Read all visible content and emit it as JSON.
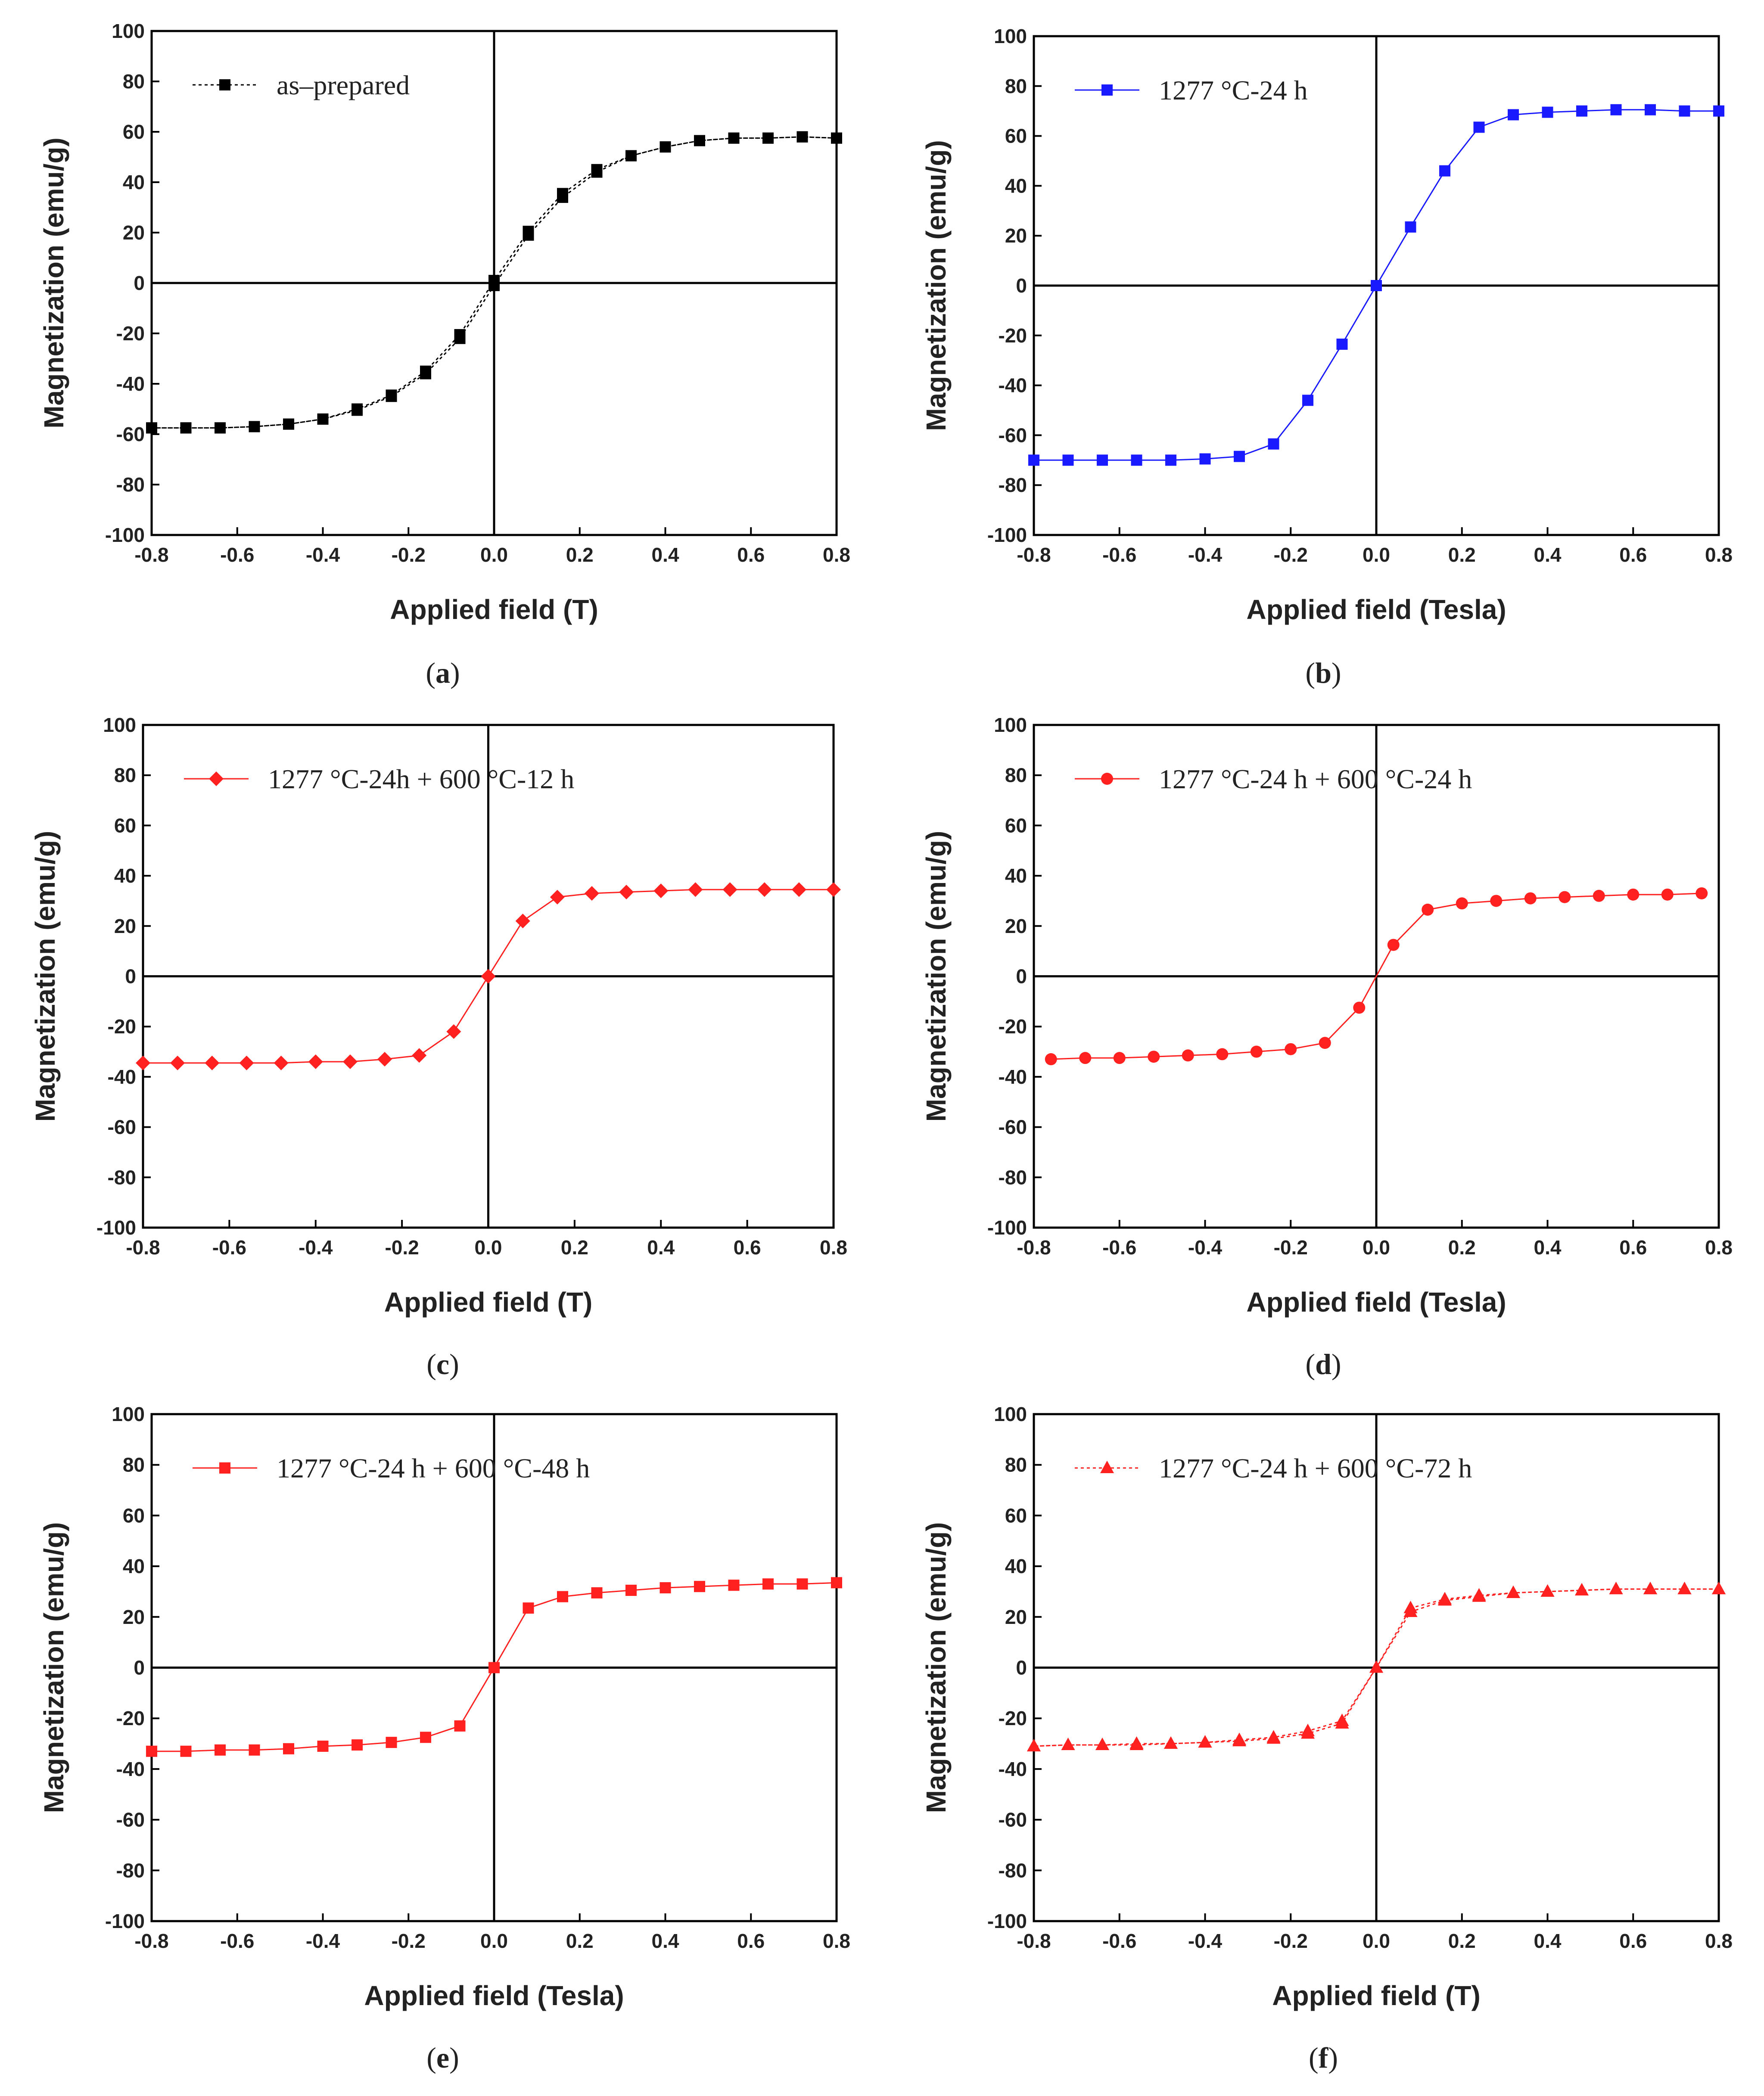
{
  "chart_data": [
    {
      "type": "scatter",
      "panel": "(a)",
      "caption_letter": "a",
      "legend": "as–prepared",
      "xlabel": "Applied field (T)",
      "ylabel": "Magnetization (emu/g)",
      "xlim": [
        -0.8,
        0.8
      ],
      "ylim": [
        -100,
        100
      ],
      "xticks": [
        -0.8,
        -0.6,
        -0.4,
        -0.2,
        0.0,
        0.2,
        0.4,
        0.6,
        0.8
      ],
      "xtick_labels": [
        "-0.8",
        "-0.6",
        "-0.4",
        "-0.2",
        "0.0",
        "0.2",
        "0.4",
        "0.6",
        "0.8"
      ],
      "yticks": [
        -100,
        -80,
        -60,
        -40,
        -20,
        0,
        20,
        40,
        60,
        80,
        100
      ],
      "ytick_labels": [
        "-100",
        "-80",
        "-60",
        "-40",
        "-20",
        "0",
        "20",
        "40",
        "60",
        "80",
        "100"
      ],
      "color": "#000000",
      "marker": "square",
      "line_style": "dotted",
      "x": [
        -0.8,
        -0.72,
        -0.64,
        -0.56,
        -0.48,
        -0.4,
        -0.32,
        -0.24,
        -0.16,
        -0.08,
        0.0,
        0.08,
        0.16,
        0.24,
        0.32,
        0.4,
        0.48,
        0.56,
        0.64,
        0.72,
        0.8
      ],
      "y": [
        -57.5,
        -57.5,
        -57.5,
        -57,
        -56,
        -54,
        -50,
        -44.5,
        -35,
        -20.5,
        1,
        20.5,
        35.5,
        45,
        50.5,
        54,
        56.5,
        57.5,
        57.5,
        58,
        57.5
      ],
      "x_return": [
        0.8,
        0.72,
        0.64,
        0.56,
        0.48,
        0.4,
        0.32,
        0.24,
        0.16,
        0.08,
        0.0,
        -0.08,
        -0.16,
        -0.24,
        -0.32,
        -0.4,
        -0.48,
        -0.56,
        -0.64,
        -0.72,
        -0.8
      ],
      "y_return": [
        57.5,
        58,
        57.5,
        57.5,
        56.5,
        54,
        50.5,
        44,
        34,
        19,
        -1,
        -22,
        -36,
        -45,
        -50.5,
        -54,
        -56,
        -57,
        -57.5,
        -57.5,
        -57.5
      ]
    },
    {
      "type": "scatter",
      "panel": "(b)",
      "caption_letter": "b",
      "legend": "1277 °C-24 h",
      "xlabel": "Applied field (Tesla)",
      "ylabel": "Magnetization (emu/g)",
      "xlim": [
        -0.8,
        0.8
      ],
      "ylim": [
        -100,
        100
      ],
      "xticks": [
        -0.8,
        -0.6,
        -0.4,
        -0.2,
        0.0,
        0.2,
        0.4,
        0.6,
        0.8
      ],
      "xtick_labels": [
        "-0.8",
        "-0.6",
        "-0.4",
        "-0.2",
        "0.0",
        "0.2",
        "0.4",
        "0.6",
        "0.8"
      ],
      "yticks": [
        -100,
        -80,
        -60,
        -40,
        -20,
        0,
        20,
        40,
        60,
        80,
        100
      ],
      "ytick_labels": [
        "-100",
        "-80",
        "-60",
        "-40",
        "-20",
        "0",
        "20",
        "40",
        "60",
        "80",
        "100"
      ],
      "color": "#1a1aff",
      "marker": "square",
      "line_style": "solid",
      "x": [
        -0.8,
        -0.72,
        -0.64,
        -0.56,
        -0.48,
        -0.4,
        -0.32,
        -0.24,
        -0.16,
        -0.08,
        0.0,
        0.08,
        0.16,
        0.24,
        0.32,
        0.4,
        0.48,
        0.56,
        0.64,
        0.72,
        0.8
      ],
      "y": [
        -70,
        -70,
        -70,
        -70,
        -70,
        -69.5,
        -68.5,
        -63.5,
        -46,
        -23.5,
        0,
        23.5,
        46,
        63.5,
        68.5,
        69.5,
        70,
        70.5,
        70.5,
        70,
        70
      ]
    },
    {
      "type": "scatter",
      "panel": "(c)",
      "caption_letter": "c",
      "legend": "1277 °C-24h + 600 °C-12 h",
      "xlabel": "Applied field (T)",
      "ylabel": "Magnetization (emu/g)",
      "xlim": [
        -0.8,
        0.8
      ],
      "ylim": [
        -100,
        100
      ],
      "xticks": [
        -0.8,
        -0.6,
        -0.4,
        -0.2,
        0.0,
        0.2,
        0.4,
        0.6,
        0.8
      ],
      "xtick_labels": [
        "-0.8",
        "-0.6",
        "-0.4",
        "-0.2",
        "0.0",
        "0.2",
        "0.4",
        "0.6",
        "0.8"
      ],
      "yticks": [
        -100,
        -80,
        -60,
        -40,
        -20,
        0,
        20,
        40,
        60,
        80,
        100
      ],
      "ytick_labels": [
        "-100",
        "-80",
        "-60",
        "-40",
        "-20",
        "0",
        "20",
        "40",
        "60",
        "80",
        "100"
      ],
      "color": "#ff2020",
      "marker": "diamond",
      "line_style": "solid",
      "x": [
        -0.8,
        -0.72,
        -0.64,
        -0.56,
        -0.48,
        -0.4,
        -0.32,
        -0.24,
        -0.16,
        -0.08,
        0.0,
        0.08,
        0.16,
        0.24,
        0.32,
        0.4,
        0.48,
        0.56,
        0.64,
        0.72,
        0.8
      ],
      "y": [
        -34.5,
        -34.5,
        -34.5,
        -34.5,
        -34.5,
        -34,
        -34,
        -33,
        -31.5,
        -22,
        0,
        22,
        31.5,
        33,
        33.5,
        34,
        34.5,
        34.5,
        34.5,
        34.5,
        34.5
      ]
    },
    {
      "type": "scatter",
      "panel": "(d)",
      "caption_letter": "d",
      "legend": "1277 °C-24 h + 600 °C-24 h",
      "xlabel": "Applied field (Tesla)",
      "ylabel": "Magnetization (emu/g)",
      "xlim": [
        -0.8,
        0.8
      ],
      "ylim": [
        -100,
        100
      ],
      "xticks": [
        -0.8,
        -0.6,
        -0.4,
        -0.2,
        0.0,
        0.2,
        0.4,
        0.6,
        0.8
      ],
      "xtick_labels": [
        "-0.8",
        "-0.6",
        "-0.4",
        "-0.2",
        "0.0",
        "0.2",
        "0.4",
        "0.6",
        "0.8"
      ],
      "yticks": [
        -100,
        -80,
        -60,
        -40,
        -20,
        0,
        20,
        40,
        60,
        80,
        100
      ],
      "ytick_labels": [
        "-100",
        "-80",
        "-60",
        "-40",
        "-20",
        "0",
        "20",
        "40",
        "60",
        "80",
        "100"
      ],
      "color": "#ff2020",
      "marker": "circle",
      "line_style": "solid",
      "x": [
        -0.76,
        -0.68,
        -0.6,
        -0.52,
        -0.44,
        -0.36,
        -0.28,
        -0.2,
        -0.12,
        -0.04,
        0.04,
        0.12,
        0.2,
        0.28,
        0.36,
        0.44,
        0.52,
        0.6,
        0.68,
        0.76
      ],
      "y": [
        -33,
        -32.5,
        -32.5,
        -32,
        -31.5,
        -31,
        -30,
        -29,
        -26.5,
        -12.5,
        12.5,
        26.5,
        29,
        30,
        31,
        31.5,
        32,
        32.5,
        32.5,
        33
      ]
    },
    {
      "type": "scatter",
      "panel": "(e)",
      "caption_letter": "e",
      "legend": "1277 °C-24 h + 600 °C-48 h",
      "xlabel": "Applied field (Tesla)",
      "ylabel": "Magnetization (emu/g)",
      "xlim": [
        -0.8,
        0.8
      ],
      "ylim": [
        -100,
        100
      ],
      "xticks": [
        -0.8,
        -0.6,
        -0.4,
        -0.2,
        0.0,
        0.2,
        0.4,
        0.6,
        0.8
      ],
      "xtick_labels": [
        "-0.8",
        "-0.6",
        "-0.4",
        "-0.2",
        "0.0",
        "0.2",
        "0.4",
        "0.6",
        "0.8"
      ],
      "yticks": [
        -100,
        -80,
        -60,
        -40,
        -20,
        0,
        20,
        40,
        60,
        80,
        100
      ],
      "ytick_labels": [
        "-100",
        "-80",
        "-60",
        "-40",
        "-20",
        "0",
        "20",
        "40",
        "60",
        "80",
        "100"
      ],
      "color": "#ff2020",
      "marker": "square",
      "line_style": "solid",
      "x": [
        -0.8,
        -0.72,
        -0.64,
        -0.56,
        -0.48,
        -0.4,
        -0.32,
        -0.24,
        -0.16,
        -0.08,
        0.0,
        0.08,
        0.16,
        0.24,
        0.32,
        0.4,
        0.48,
        0.56,
        0.64,
        0.72,
        0.8
      ],
      "y": [
        -33,
        -33,
        -32.5,
        -32.5,
        -32,
        -31,
        -30.5,
        -29.5,
        -27.5,
        -23,
        0,
        23.5,
        28,
        29.5,
        30.5,
        31.5,
        32,
        32.5,
        33,
        33,
        33.5
      ]
    },
    {
      "type": "scatter",
      "panel": "(f)",
      "caption_letter": "f",
      "legend": "1277 °C-24 h + 600 °C-72 h",
      "xlabel": "Applied field (T)",
      "ylabel": "Magnetization (emu/g)",
      "xlim": [
        -0.8,
        0.8
      ],
      "ylim": [
        -100,
        100
      ],
      "xticks": [
        -0.8,
        -0.6,
        -0.4,
        -0.2,
        0.0,
        0.2,
        0.4,
        0.6,
        0.8
      ],
      "xtick_labels": [
        "-0.8",
        "-0.6",
        "-0.4",
        "-0.2",
        "0.0",
        "0.2",
        "0.4",
        "0.6",
        "0.8"
      ],
      "yticks": [
        -100,
        -80,
        -60,
        -40,
        -20,
        0,
        20,
        40,
        60,
        80,
        100
      ],
      "ytick_labels": [
        "-100",
        "-80",
        "-60",
        "-40",
        "-20",
        "0",
        "20",
        "40",
        "60",
        "80",
        "100"
      ],
      "color": "#ff2020",
      "marker": "triangle",
      "line_style": "dotted",
      "x": [
        -0.8,
        -0.72,
        -0.64,
        -0.56,
        -0.48,
        -0.4,
        -0.32,
        -0.24,
        -0.16,
        -0.08,
        0.0,
        0.08,
        0.16,
        0.24,
        0.32,
        0.4,
        0.48,
        0.56,
        0.64,
        0.72,
        0.8
      ],
      "y": [
        -31,
        -30.5,
        -30.5,
        -30.5,
        -30,
        -29.5,
        -29,
        -28,
        -26,
        -22,
        0,
        22,
        26.5,
        28,
        29.5,
        30,
        30.5,
        31,
        31,
        31,
        31
      ],
      "x_return": [
        0.8,
        0.72,
        0.64,
        0.56,
        0.48,
        0.4,
        0.32,
        0.24,
        0.16,
        0.08,
        0.0,
        -0.08,
        -0.16,
        -0.24,
        -0.32,
        -0.4,
        -0.48,
        -0.56,
        -0.64,
        -0.72,
        -0.8
      ],
      "y_return": [
        31,
        31,
        31,
        31,
        30.5,
        30,
        29.5,
        28.5,
        27,
        23.5,
        0,
        -21,
        -25,
        -27.5,
        -28.5,
        -29.5,
        -30,
        -30,
        -30.5,
        -30.5,
        -31
      ]
    }
  ]
}
